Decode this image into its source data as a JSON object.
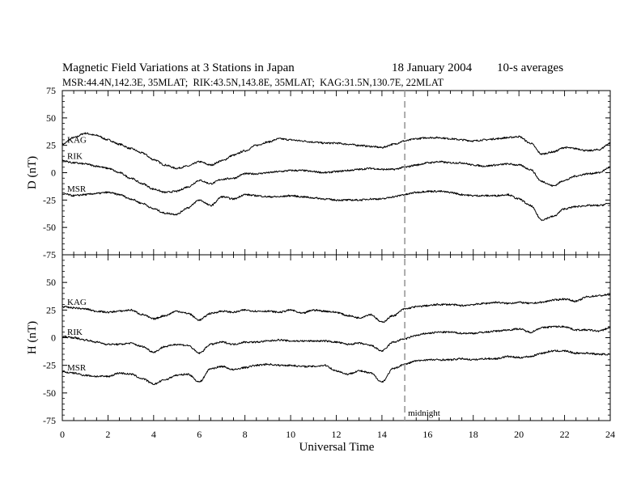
{
  "chart_data": {
    "type": "line",
    "title": "Magnetic Field Variations at 3 Stations in Japan",
    "date": "18 January 2004",
    "averaging": "10-s averages",
    "subtitle": "MSR:44.4N,142.3E, 35MLAT;  RIK:43.5N,143.8E, 35MLAT;  KAG:31.5N,130.7E, 22MLAT",
    "xlabel": "Universal Time",
    "xlim": [
      0,
      24
    ],
    "xticks": [
      0,
      2,
      4,
      6,
      8,
      10,
      12,
      14,
      16,
      18,
      20,
      22,
      24
    ],
    "annotation": {
      "x": 15,
      "label": "midnight"
    },
    "panels": [
      {
        "ylabel": "D (nT)",
        "ylim": [
          -75,
          75
        ],
        "yticks": [
          75,
          50,
          25,
          0,
          -25,
          -50,
          -75
        ],
        "x": [
          0,
          0.5,
          1,
          1.5,
          2,
          2.5,
          3,
          3.5,
          4,
          4.5,
          5,
          5.5,
          6,
          6.5,
          7,
          7.5,
          8,
          8.5,
          9,
          9.5,
          10,
          10.5,
          11,
          11.5,
          12,
          12.5,
          13,
          13.5,
          14,
          14.5,
          15,
          15.5,
          16,
          16.5,
          17,
          17.5,
          18,
          18.5,
          19,
          19.5,
          20,
          20.5,
          21,
          21.5,
          22,
          22.5,
          23,
          23.5,
          24
        ],
        "series": [
          {
            "name": "KAG",
            "values": [
              26,
              32,
              36,
              34,
              30,
              26,
              22,
              18,
              12,
              7,
              4,
              6,
              10,
              7,
              11,
              16,
              20,
              25,
              28,
              31,
              30,
              29,
              28,
              27,
              27,
              26,
              25,
              24,
              23,
              26,
              29,
              31,
              32,
              32,
              31,
              30,
              29,
              30,
              31,
              32,
              33,
              27,
              17,
              19,
              23,
              22,
              20,
              21,
              27
            ]
          },
          {
            "name": "RIK",
            "values": [
              11,
              9,
              8,
              6,
              4,
              0,
              -5,
              -10,
              -15,
              -18,
              -17,
              -13,
              -7,
              -10,
              -6,
              -5,
              -1,
              -1,
              0,
              1,
              2,
              2,
              1,
              0,
              1,
              2,
              3,
              4,
              3,
              3,
              5,
              7,
              9,
              10,
              9,
              9,
              7,
              6,
              7,
              8,
              7,
              3,
              -8,
              -12,
              -7,
              -3,
              -1,
              0,
              5
            ]
          },
          {
            "name": "MSR",
            "values": [
              -19,
              -21,
              -20,
              -19,
              -18,
              -20,
              -24,
              -28,
              -33,
              -37,
              -38,
              -32,
              -25,
              -30,
              -22,
              -24,
              -20,
              -21,
              -22,
              -22,
              -21,
              -22,
              -23,
              -24,
              -25,
              -25,
              -25,
              -24,
              -24,
              -22,
              -20,
              -18,
              -17,
              -17,
              -18,
              -20,
              -21,
              -21,
              -21,
              -20,
              -24,
              -30,
              -43,
              -40,
              -33,
              -31,
              -30,
              -30,
              -28
            ]
          }
        ]
      },
      {
        "ylabel": "H (nT)",
        "ylim": [
          -75,
          75
        ],
        "yticks": [
          75,
          50,
          25,
          0,
          -25,
          -50,
          -75
        ],
        "x": [
          0,
          0.5,
          1,
          1.5,
          2,
          2.5,
          3,
          3.5,
          4,
          4.5,
          5,
          5.5,
          6,
          6.5,
          7,
          7.5,
          8,
          8.5,
          9,
          9.5,
          10,
          10.5,
          11,
          11.5,
          12,
          12.5,
          13,
          13.5,
          14,
          14.5,
          15,
          15.5,
          16,
          16.5,
          17,
          17.5,
          18,
          18.5,
          19,
          19.5,
          20,
          20.5,
          21,
          21.5,
          22,
          22.5,
          23,
          23.5,
          24
        ],
        "series": [
          {
            "name": "KAG",
            "values": [
              28,
              27,
              26,
              24,
              23,
              24,
              25,
              21,
              17,
              20,
              24,
              22,
              16,
              22,
              24,
              23,
              25,
              24,
              24,
              23,
              25,
              22,
              25,
              24,
              23,
              20,
              18,
              21,
              14,
              20,
              26,
              28,
              29,
              30,
              30,
              29,
              30,
              31,
              32,
              31,
              32,
              31,
              32,
              34,
              35,
              33,
              37,
              38,
              39
            ]
          },
          {
            "name": "RIK",
            "values": [
              1,
              0,
              -2,
              -4,
              -6,
              -6,
              -5,
              -8,
              -13,
              -8,
              -6,
              -7,
              -14,
              -6,
              -4,
              -6,
              -4,
              -4,
              -3,
              -2,
              -3,
              -3,
              -3,
              -3,
              -4,
              -6,
              -5,
              -7,
              -12,
              -4,
              -1,
              2,
              4,
              5,
              5,
              4,
              4,
              5,
              6,
              7,
              8,
              5,
              9,
              10,
              10,
              7,
              7,
              6,
              9
            ]
          },
          {
            "name": "MSR",
            "values": [
              -31,
              -32,
              -34,
              -35,
              -35,
              -32,
              -33,
              -37,
              -42,
              -38,
              -34,
              -33,
              -40,
              -28,
              -26,
              -29,
              -27,
              -25,
              -24,
              -25,
              -25,
              -26,
              -26,
              -25,
              -30,
              -33,
              -30,
              -32,
              -40,
              -28,
              -24,
              -21,
              -20,
              -20,
              -20,
              -19,
              -20,
              -19,
              -19,
              -17,
              -18,
              -17,
              -14,
              -12,
              -12,
              -14,
              -14,
              -15,
              -15
            ]
          }
        ]
      }
    ]
  }
}
